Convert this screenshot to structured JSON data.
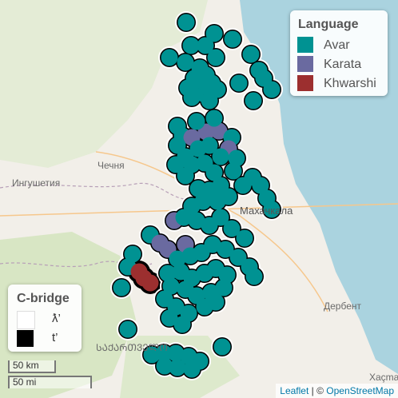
{
  "language_legend": {
    "title": "Language",
    "items": [
      {
        "label": "Avar",
        "color": "#009292"
      },
      {
        "label": "Karata",
        "color": "#6a6aa0"
      },
      {
        "label": "Khwarshi",
        "color": "#9c2f2f"
      }
    ]
  },
  "bridge_legend": {
    "title": "C-bridge",
    "items": [
      {
        "label": "ƛ’",
        "color": "#ffffff"
      },
      {
        "label": "t’",
        "color": "#000000"
      }
    ]
  },
  "scale": {
    "km": "50 km",
    "mi": "50 mi"
  },
  "attribution": {
    "leaflet": "Leaflet",
    "sep": " | © ",
    "osm": "OpenStreetMap"
  },
  "places": {
    "chechnya": "Чечня",
    "ingushetia": "Ингушетия",
    "makhachkala": "Махачкала",
    "derbent": "Дербент",
    "georgia": "ᲡᲐᲥᲐᲠᲗᲕᲔᲚᲝ",
    "hashtag": "Xaçmaz"
  },
  "colors": {
    "sea": "#aad3df",
    "land": "#f2efe9",
    "avar": "#009292",
    "karata": "#6a6aa0",
    "khwarshi": "#9c2f2f"
  }
}
